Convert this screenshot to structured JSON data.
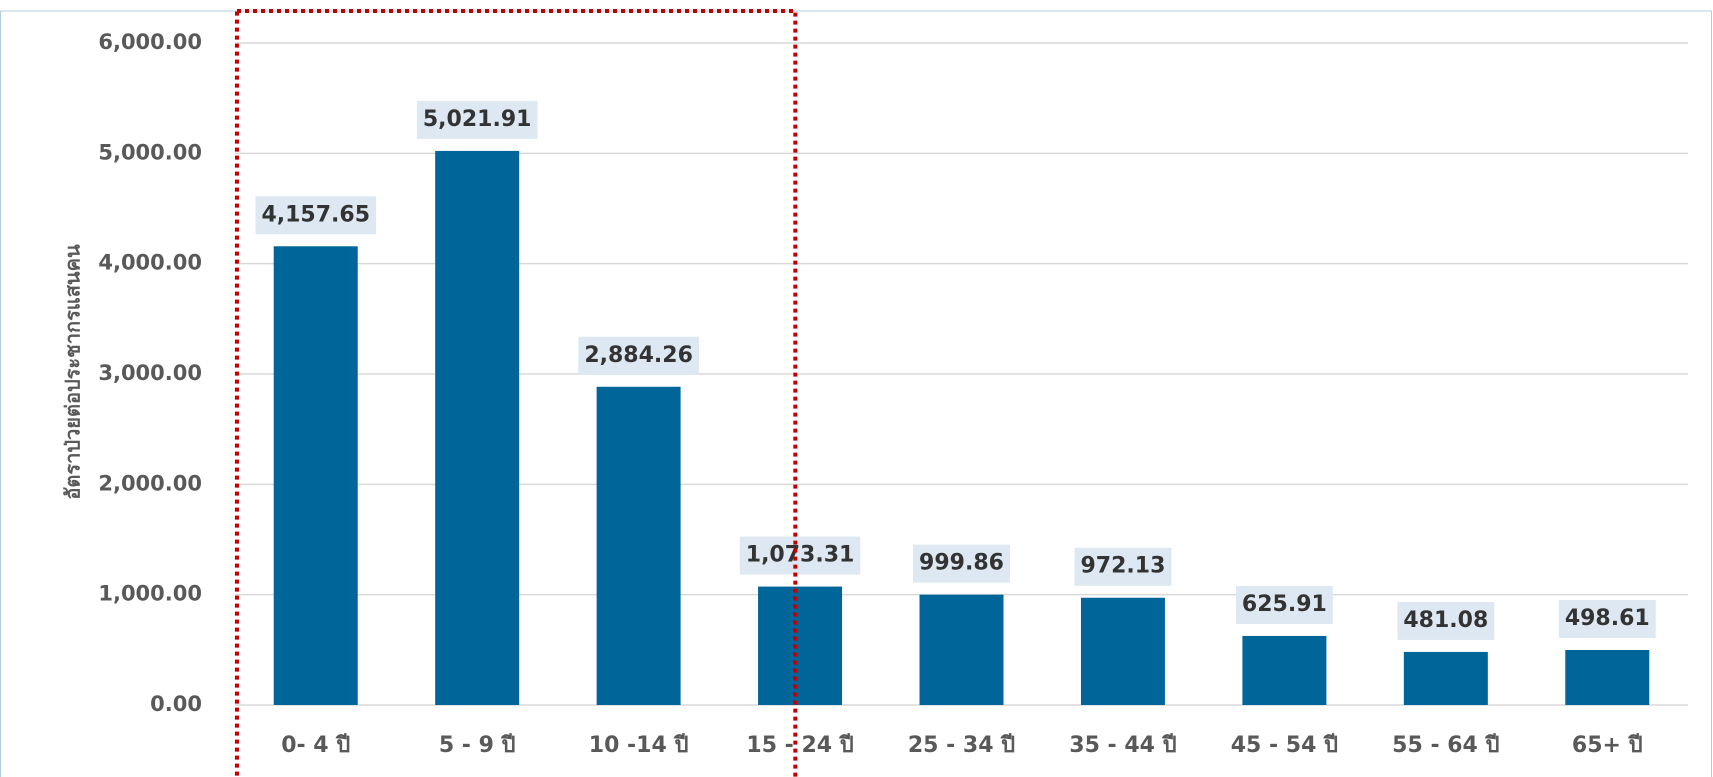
{
  "chart_data": {
    "type": "bar",
    "ylabel": "อัตราป่วยต่อประชากรแสนคน",
    "categories": [
      "0- 4 ปี",
      "5 - 9 ปี",
      "10 -14 ปี",
      "15 - 24 ปี",
      "25 - 34 ปี",
      "35 - 44 ปี",
      "45 - 54 ปี",
      "55 - 64 ปี",
      "65+ ปี"
    ],
    "values": [
      4157.65,
      5021.91,
      2884.26,
      1073.31,
      999.86,
      972.13,
      625.91,
      481.08,
      498.61
    ],
    "value_labels": [
      "4,157.65",
      "5,021.91",
      "2,884.26",
      "1,073.31",
      "999.86",
      "972.13",
      "625.91",
      "481.08",
      "498.61"
    ],
    "color": "#00669a",
    "ylim": [
      0,
      6000
    ],
    "yticks": [
      {
        "value": 0,
        "label": "0.00"
      },
      {
        "value": 1000,
        "label": "1,000.00"
      },
      {
        "value": 2000,
        "label": "2,000.00"
      },
      {
        "value": 3000,
        "label": "3,000.00"
      },
      {
        "value": 4000,
        "label": "4,000.00"
      },
      {
        "value": 5000,
        "label": "5,000.00"
      },
      {
        "value": 6000,
        "label": "6,000.00"
      }
    ],
    "grid": true
  }
}
